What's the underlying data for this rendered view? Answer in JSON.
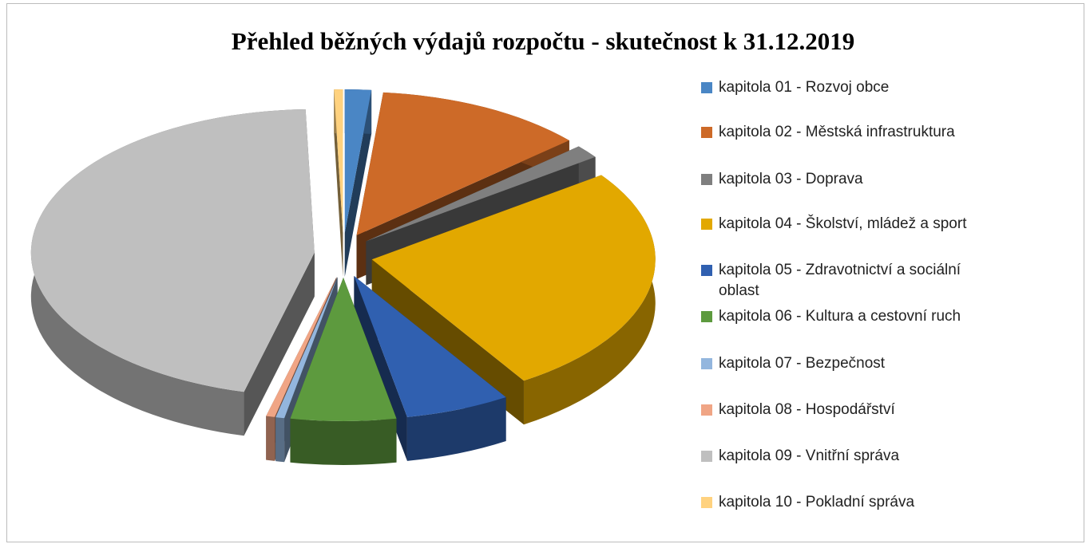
{
  "chart_data": {
    "type": "pie3d",
    "title": "Přehled běžných výdajů rozpočtu - skutečnost k 31.12.2019",
    "categories": [
      "kapitola 01 - Rozvoj obce",
      "kapitola 02 - Městská infrastruktura",
      "kapitola 03 - Doprava",
      "kapitola 04 - Školství, mládež a sport",
      "kapitola 05 - Zdravotnictví a sociální oblast",
      "kapitola 06 - Kultura a cestovní ruch",
      "kapitola 07 - Bezpečnost",
      "kapitola 08 - Hospodářství",
      "kapitola 09 - Vnitřní správa",
      "kapitola 10 - Pokladní správa"
    ],
    "values": [
      1.5,
      12,
      1.5,
      26,
      6,
      6,
      0.5,
      0.5,
      45.5,
      0.5
    ],
    "colors": [
      "#4a86c5",
      "#cd6a28",
      "#7f7f7f",
      "#e2a800",
      "#3060b0",
      "#5d9a3e",
      "#93b6de",
      "#f0a585",
      "#bfbfbf",
      "#ffd27f"
    ],
    "legend": "right"
  }
}
